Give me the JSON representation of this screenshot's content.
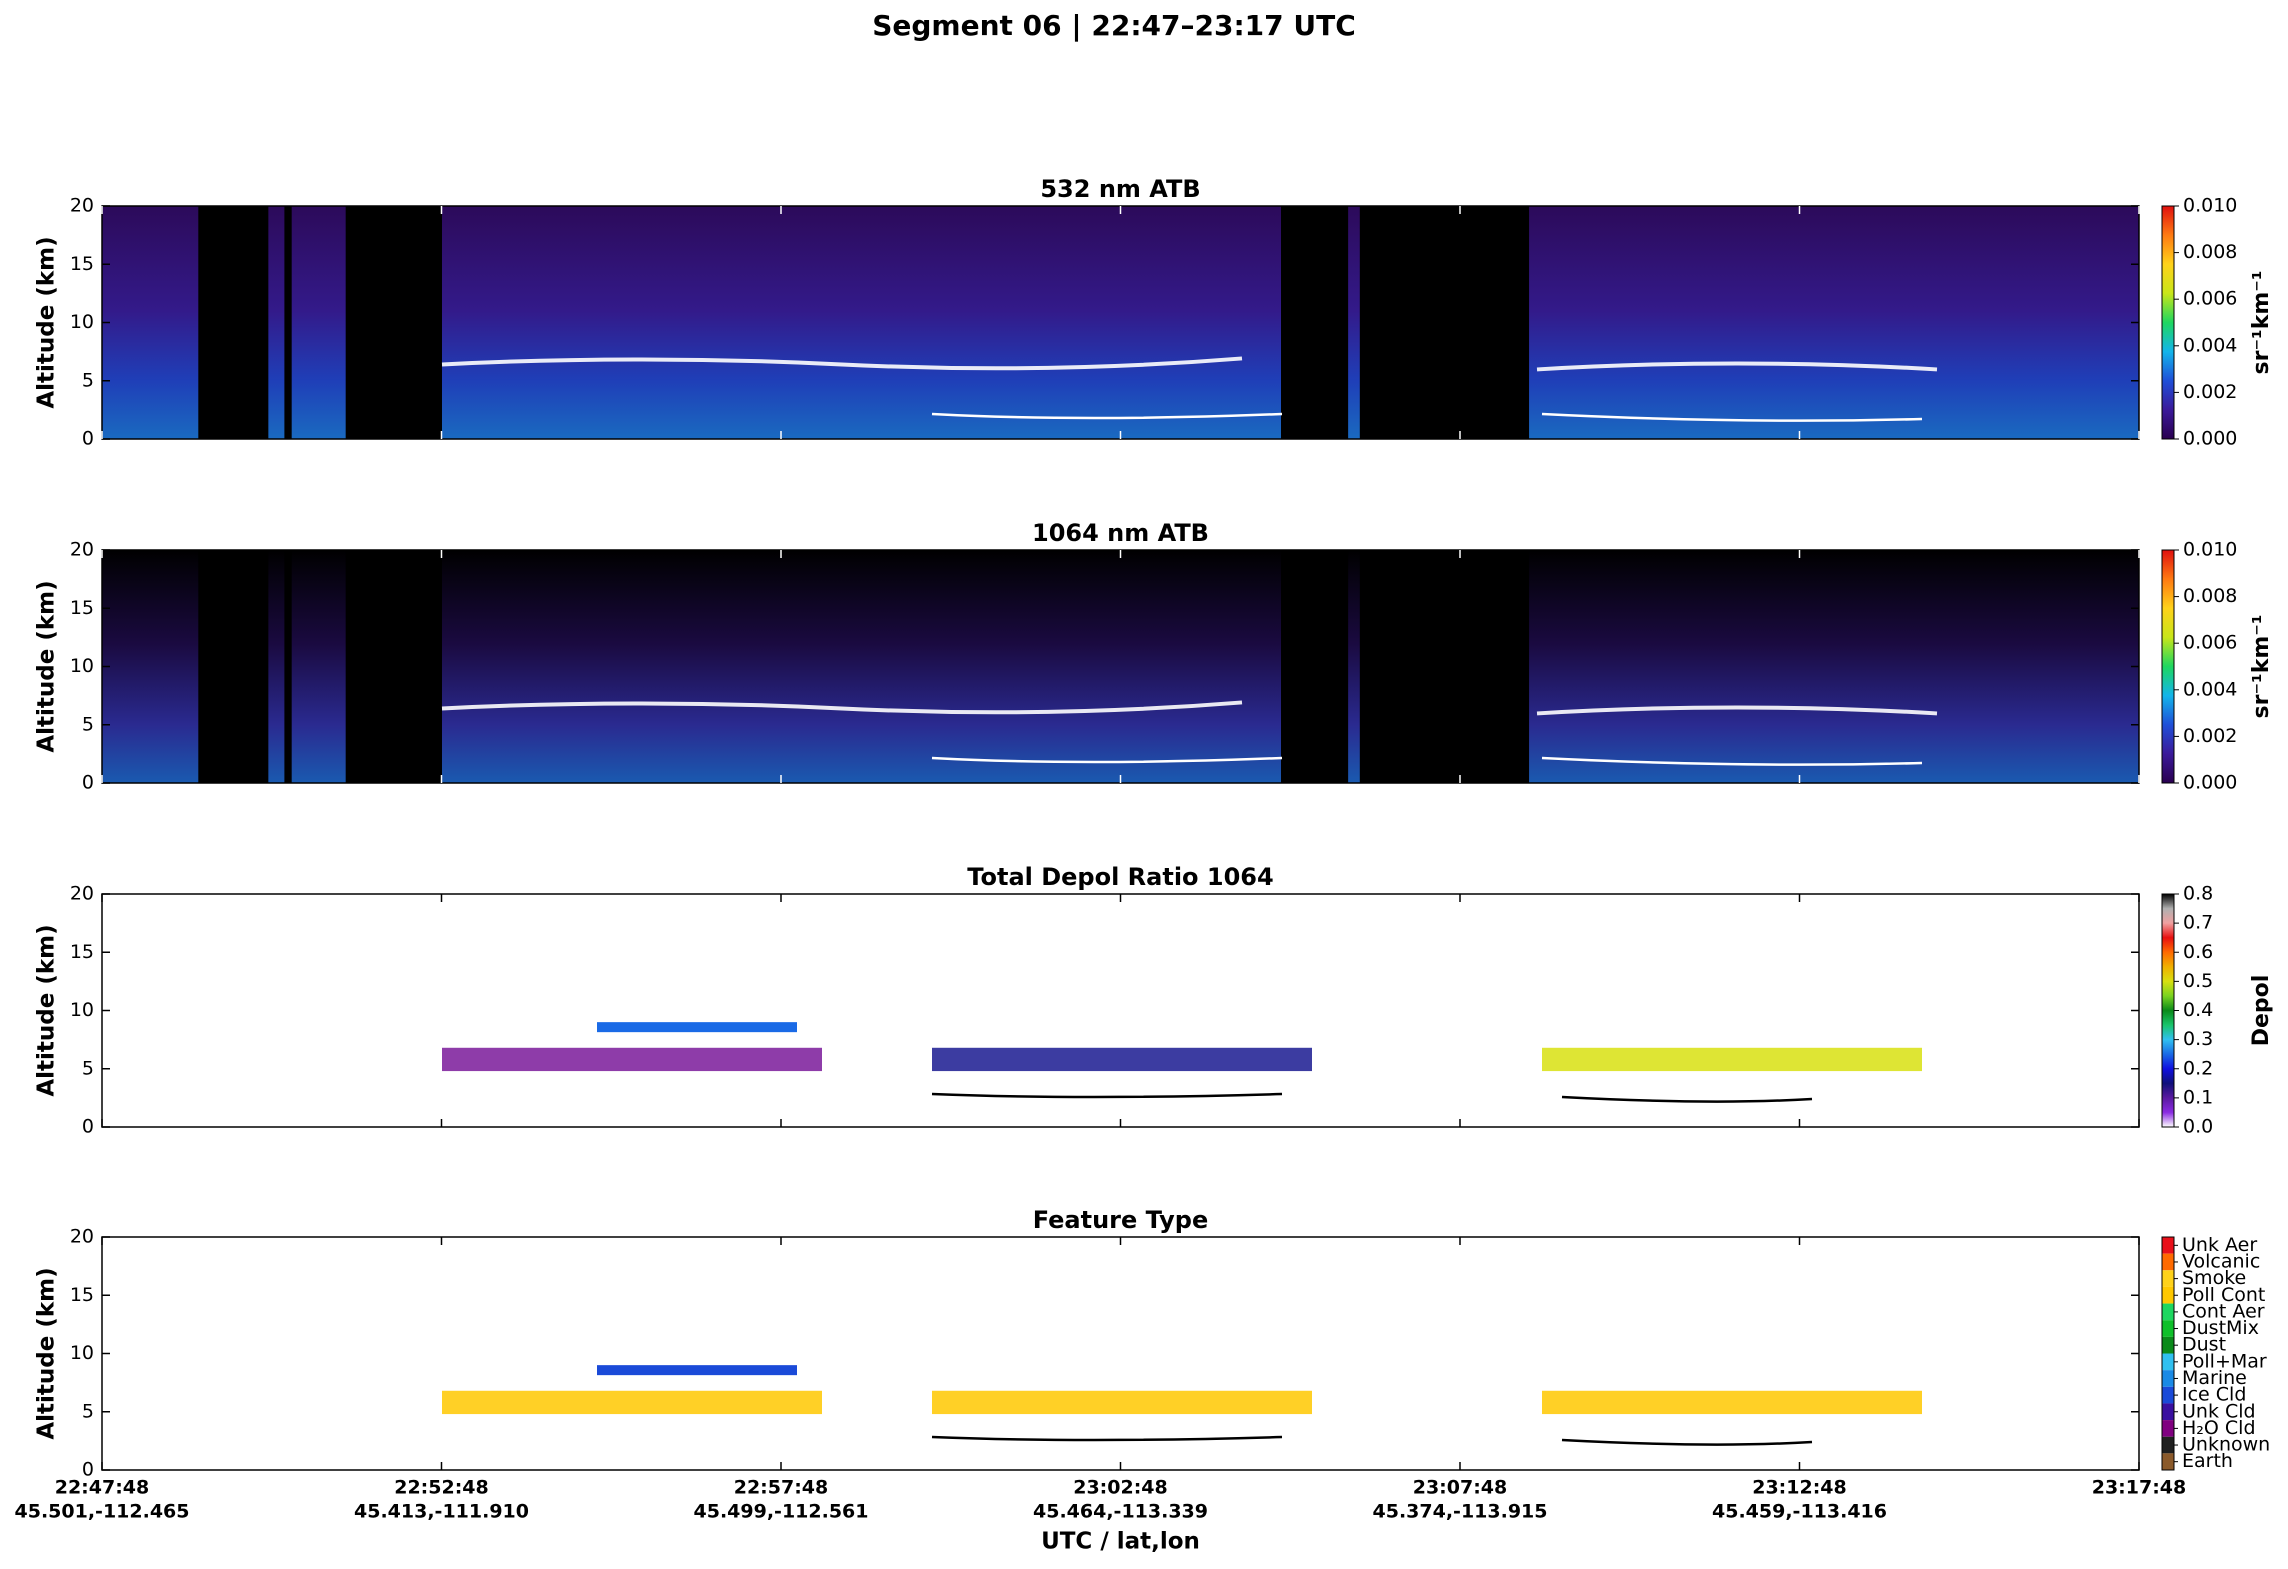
{
  "title": "Segment 06  |  22:47–23:17 UTC",
  "x_axis": {
    "label": "UTC / lat,lon",
    "ticks": [
      "22:47:48",
      "22:52:48",
      "22:57:48",
      "23:02:48",
      "23:07:48",
      "23:12:48",
      "23:17:48"
    ],
    "lat_lon": [
      "45.501,-112.465",
      "45.413,-111.910",
      "45.499,-112.561",
      "45.464,-113.339",
      "45.374,-113.915",
      "45.459,-113.416",
      null
    ]
  },
  "chart_data": [
    {
      "type": "heatmap",
      "title": "532 nm ATB",
      "ylabel": "Altitude (km)",
      "ylim": [
        0,
        20
      ],
      "yticks": [
        0,
        5,
        10,
        15,
        20
      ],
      "colorbar": {
        "label": "sr⁻¹km⁻¹",
        "lim": [
          0,
          0.01
        ],
        "ticks": [
          {
            "value": 0,
            "label": "0.000"
          },
          {
            "value": 0.002,
            "label": "0.002"
          },
          {
            "value": 0.004,
            "label": "0.004"
          },
          {
            "value": 0.006,
            "label": "0.006"
          },
          {
            "value": 0.008,
            "label": "0.008"
          },
          {
            "value": 0.01,
            "label": "0.010"
          }
        ],
        "colors": [
          "#2a0050",
          "#3b1a9a",
          "#1f4fd8",
          "#13b5ea",
          "#1ed760",
          "#c8e619",
          "#ffd21a",
          "#ff7a12",
          "#e0100f"
        ]
      }
    },
    {
      "type": "heatmap",
      "title": "1064 nm ATB",
      "ylabel": "Altitude (km)",
      "ylim": [
        0,
        20
      ],
      "yticks": [
        0,
        5,
        10,
        15,
        20
      ],
      "colorbar": {
        "label": "sr⁻¹km⁻¹",
        "lim": [
          0,
          0.01
        ],
        "ticks": [
          {
            "value": 0,
            "label": "0.000"
          },
          {
            "value": 0.002,
            "label": "0.002"
          },
          {
            "value": 0.004,
            "label": "0.004"
          },
          {
            "value": 0.006,
            "label": "0.006"
          },
          {
            "value": 0.008,
            "label": "0.008"
          },
          {
            "value": 0.01,
            "label": "0.010"
          }
        ],
        "colors": [
          "#2a0050",
          "#3b1a9a",
          "#1f4fd8",
          "#13b5ea",
          "#1ed760",
          "#c8e619",
          "#ffd21a",
          "#ff7a12",
          "#e0100f"
        ]
      }
    },
    {
      "type": "heatmap",
      "title": "Total Depol Ratio 1064",
      "ylabel": "Altitude (km)",
      "ylim": [
        0,
        20
      ],
      "yticks": [
        0,
        5,
        10,
        15,
        20
      ],
      "colorbar": {
        "label": "Depol",
        "lim": [
          0,
          0.8
        ],
        "ticks": [
          {
            "value": 0,
            "label": "0.0"
          },
          {
            "value": 0.1,
            "label": "0.1"
          },
          {
            "value": 0.2,
            "label": "0.2"
          },
          {
            "value": 0.3,
            "label": "0.3"
          },
          {
            "value": 0.4,
            "label": "0.4"
          },
          {
            "value": 0.5,
            "label": "0.5"
          },
          {
            "value": 0.6,
            "label": "0.6"
          },
          {
            "value": 0.7,
            "label": "0.7"
          },
          {
            "value": 0.8,
            "label": "0.8"
          }
        ],
        "colors": [
          "#ffffff",
          "#8a2be2",
          "#5a1aa0",
          "#10107a",
          "#1010e0",
          "#1a6ae6",
          "#30c0f0",
          "#19c46b",
          "#0a8a1a",
          "#7ad320",
          "#d8e010",
          "#f0b000",
          "#ff6a00",
          "#e81010",
          "#f0a0a0",
          "#b0b0b0",
          "#000000"
        ]
      }
    },
    {
      "type": "heatmap",
      "title": "Feature Type",
      "ylabel": "Altitude (km)",
      "ylim": [
        0,
        20
      ],
      "yticks": [
        0,
        5,
        10,
        15,
        20
      ],
      "colorbar": {
        "categories": [
          "Unk Aer",
          "Volcanic",
          "Smoke",
          "Poll Cont",
          "Cont Aer",
          "DustMix",
          "Dust",
          "Poll+Mar",
          "Marine",
          "Ice Cld",
          "Unk Cld",
          "H₂O Cld",
          "Unknown",
          "Earth"
        ],
        "colors": [
          "#e8101a",
          "#ff6a00",
          "#ffd21a",
          "#ffc800",
          "#1ed760",
          "#0fc02a",
          "#0a8a1a",
          "#30c0f0",
          "#1a8ae6",
          "#1a4ad8",
          "#3a10a0",
          "#800080",
          "#202020",
          "#8b5a2b"
        ]
      }
    }
  ]
}
